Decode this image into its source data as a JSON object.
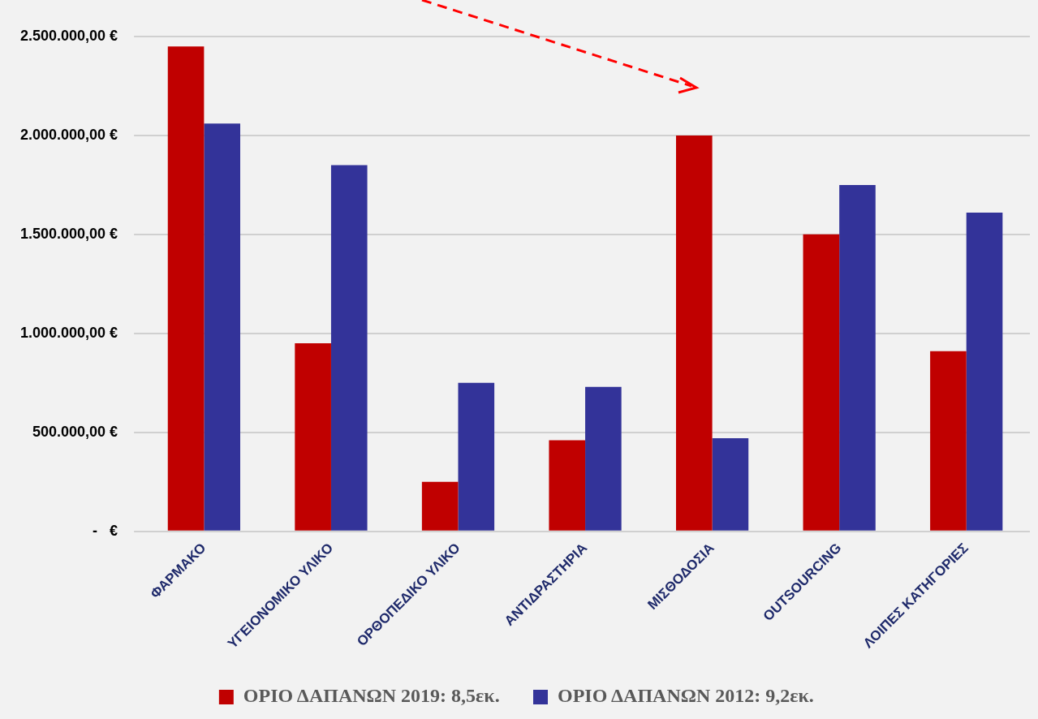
{
  "chart_data": {
    "type": "bar",
    "categories": [
      "ΦΑΡΜΑΚΟ",
      "ΥΓΕΙΟΝΟΜΙΚΟ ΥΛΙΚΟ",
      "ΟΡΘΟΠΕΔΙΚΟ ΥΛΙΚΟ",
      "ΑΝΤΙΔΡΑΣΤΗΡΙΑ",
      "ΜΙΣΘΟΔΟΣΙΑ",
      "OUTSOURCING",
      "ΛΟΙΠΕΣ ΚΑΤΗΓΟΡΙΕΣ"
    ],
    "series": [
      {
        "name": "ΟΡΙΟ ΔΑΠΑΝΩΝ 2019: 8,5εκ.",
        "color": "#c00000",
        "values": [
          2450000,
          950000,
          250000,
          460000,
          2000000,
          1500000,
          910000
        ]
      },
      {
        "name": "ΟΡΙΟ ΔΑΠΑΝΩΝ 2012: 9,2εκ.",
        "color": "#333399",
        "values": [
          2060000,
          1850000,
          750000,
          730000,
          470000,
          1750000,
          1610000
        ]
      }
    ],
    "ylim": [
      0,
      2500000
    ],
    "yticks": [
      {
        "value": 0,
        "label": "-   €"
      },
      {
        "value": 500000,
        "label": "500.000,00 €"
      },
      {
        "value": 1000000,
        "label": "1.000.000,00 €"
      },
      {
        "value": 1500000,
        "label": "1.500.000,00 €"
      },
      {
        "value": 2000000,
        "label": "2.000.000,00 €"
      },
      {
        "value": 2500000,
        "label": "2.500.000,00 €"
      }
    ],
    "grid": "y",
    "legend": "bottom"
  }
}
